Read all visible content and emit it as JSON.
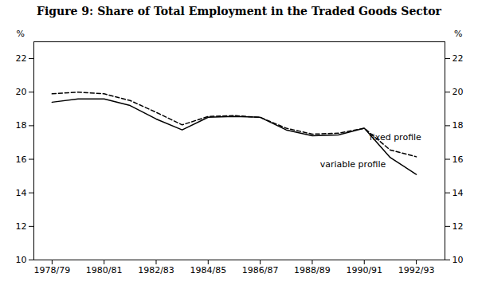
{
  "chart_data": {
    "type": "line",
    "title": "Figure 9: Share of Total Employment in the Traded Goods Sector",
    "ylabel": "%",
    "x": [
      1978.5,
      1979.5,
      1980.5,
      1981.5,
      1982.5,
      1983.5,
      1984.5,
      1985.5,
      1986.5,
      1987.5,
      1988.5,
      1989.5,
      1990.5,
      1991.5,
      1992.5
    ],
    "series": [
      {
        "name": "variable profile",
        "color": "#000000",
        "line_style": "solid",
        "values": [
          19.4,
          19.6,
          19.6,
          19.2,
          18.4,
          17.75,
          18.5,
          18.55,
          18.5,
          17.75,
          17.4,
          17.45,
          17.85,
          16.1,
          15.1
        ]
      },
      {
        "name": "fixed profile",
        "color": "#000000",
        "line_style": "dashed",
        "values": [
          19.9,
          20.0,
          19.9,
          19.5,
          18.8,
          18.05,
          18.55,
          18.6,
          18.5,
          17.85,
          17.5,
          17.55,
          17.85,
          16.55,
          16.15
        ]
      }
    ],
    "xlim": [
      1977.8,
      1993.6
    ],
    "xticks": [
      {
        "value": 1978.5,
        "label": "1978/79"
      },
      {
        "value": 1980.5,
        "label": "1980/81"
      },
      {
        "value": 1982.5,
        "label": "1982/83"
      },
      {
        "value": 1984.5,
        "label": "1984/85"
      },
      {
        "value": 1986.5,
        "label": "1986/87"
      },
      {
        "value": 1988.5,
        "label": "1988/89"
      },
      {
        "value": 1990.5,
        "label": "1990/91"
      },
      {
        "value": 1992.5,
        "label": "1992/93"
      }
    ],
    "ylim": [
      10,
      23.0
    ],
    "yticks": [
      10,
      12,
      14,
      16,
      18,
      20,
      22
    ],
    "grid": false,
    "annotations": [
      {
        "text": "fixed profile",
        "x": 1990.7,
        "y": 17.3
      },
      {
        "text": "variable profile",
        "x": 1988.8,
        "y": 15.7
      }
    ]
  }
}
